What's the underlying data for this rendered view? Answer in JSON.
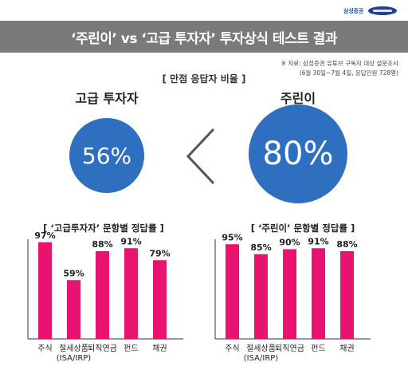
{
  "brand": {
    "text": "삼성증권",
    "logo": "SAMSUNG"
  },
  "title": "‘주린이’ vs ‘고급 투자자’ 투자상식 테스트 결과",
  "source": {
    "line1": "※ 자료: 삼성증권 유튜브 구독자 대상 설문조사",
    "line2": "(6월 30일~7월 4일, 응답인원 728명)"
  },
  "subtitle": "[ 만점 응답자 비율 ]",
  "comparison": {
    "left_label": "고급 투자자",
    "left_value": "56%",
    "right_label": "주린이",
    "right_value": "80%",
    "symbol": "<"
  },
  "colors": {
    "bar": "#e8136f",
    "circle": "#2f6fbf",
    "title_bar": "#7a7a7a"
  },
  "chart_data": [
    {
      "type": "bar",
      "title": "[ ‘고급투자자’ 문항별 정답률 ]",
      "categories": [
        "주식",
        "절세상품\n(ISA/IRP)",
        "퇴직연금",
        "펀드",
        "채권"
      ],
      "values": [
        97,
        59,
        88,
        91,
        79
      ],
      "labels": [
        "97%",
        "59%",
        "88%",
        "91%",
        "79%"
      ],
      "ylim": [
        0,
        100
      ]
    },
    {
      "type": "bar",
      "title": "[ ‘주린이’ 문항별 정답률 ]",
      "categories": [
        "주식",
        "절세상품\n(ISA/IRP)",
        "퇴직연금",
        "펀드",
        "채권"
      ],
      "values": [
        95,
        85,
        90,
        91,
        88
      ],
      "labels": [
        "95%",
        "85%",
        "90%",
        "91%",
        "88%"
      ],
      "ylim": [
        0,
        100
      ]
    }
  ]
}
